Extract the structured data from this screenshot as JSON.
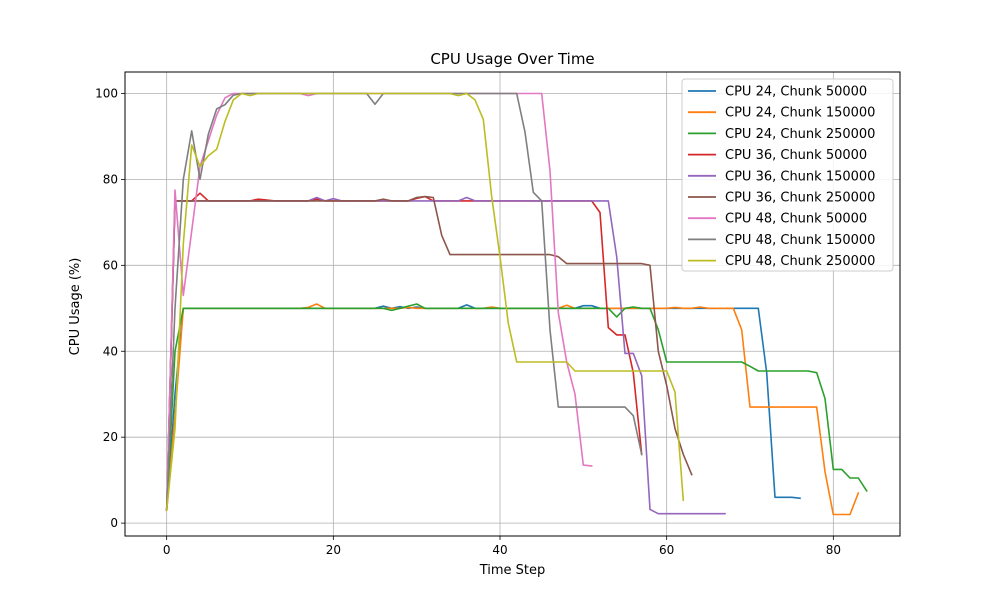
{
  "chart_data": {
    "type": "line",
    "title": "CPU Usage Over Time",
    "xlabel": "Time Step",
    "ylabel": "CPU Usage (%)",
    "xlim": [
      -5,
      88
    ],
    "ylim": [
      -3,
      105
    ],
    "xticks": [
      0,
      20,
      40,
      60,
      80
    ],
    "yticks": [
      0,
      20,
      40,
      60,
      80,
      100
    ],
    "grid": true,
    "legend_position": "upper right",
    "series": [
      {
        "name": "CPU 24, Chunk 50000",
        "color": "#1f77b4",
        "x": [
          0,
          1,
          2,
          3,
          4,
          5,
          6,
          7,
          8,
          9,
          10,
          11,
          12,
          13,
          14,
          15,
          16,
          17,
          18,
          19,
          20,
          21,
          22,
          23,
          24,
          25,
          26,
          27,
          28,
          29,
          30,
          31,
          32,
          33,
          34,
          35,
          36,
          37,
          38,
          39,
          40,
          41,
          42,
          43,
          44,
          45,
          46,
          47,
          48,
          49,
          50,
          51,
          52,
          53,
          54,
          55,
          56,
          57,
          58,
          59,
          60,
          61,
          62,
          63,
          64,
          65,
          66,
          67,
          68,
          69,
          70,
          71,
          72,
          73,
          74,
          75,
          76
        ],
        "y": [
          3,
          30,
          50,
          50,
          50,
          50,
          50,
          50,
          50,
          50,
          50,
          50,
          50,
          50,
          50,
          50,
          50,
          50,
          50,
          50,
          50,
          50,
          50,
          50,
          50,
          50,
          50.5,
          50,
          50.4,
          50,
          50.3,
          50,
          50,
          50,
          50,
          50,
          50.8,
          50,
          50,
          50,
          50,
          50,
          50,
          50,
          50,
          50,
          50,
          50,
          50,
          50,
          50.6,
          50.6,
          50,
          50,
          50,
          50,
          50,
          50,
          50,
          50,
          50,
          50,
          50,
          50,
          50,
          50,
          50,
          50,
          50,
          50,
          50,
          50,
          35,
          6,
          6,
          6,
          5.8
        ]
      },
      {
        "name": "CPU 24, Chunk 150000",
        "color": "#ff7f0e",
        "x": [
          0,
          1,
          2,
          3,
          4,
          5,
          6,
          7,
          8,
          9,
          10,
          11,
          12,
          13,
          14,
          15,
          16,
          17,
          18,
          19,
          20,
          21,
          22,
          23,
          24,
          25,
          26,
          27,
          28,
          29,
          30,
          31,
          32,
          33,
          34,
          35,
          36,
          37,
          38,
          39,
          40,
          41,
          42,
          43,
          44,
          45,
          46,
          47,
          48,
          49,
          50,
          51,
          52,
          53,
          54,
          55,
          56,
          57,
          58,
          59,
          60,
          61,
          62,
          63,
          64,
          65,
          66,
          67,
          68,
          69,
          70,
          71,
          72,
          73,
          74,
          75,
          76,
          77,
          78,
          79,
          80,
          81,
          82,
          83
        ],
        "y": [
          3,
          25,
          50,
          50,
          50,
          50,
          50,
          50,
          50,
          50,
          50,
          50,
          50,
          50,
          50,
          50,
          50,
          50.2,
          51,
          50,
          50,
          50,
          50,
          50,
          50,
          50,
          50,
          50,
          50,
          50.2,
          50,
          50,
          50,
          50,
          50,
          50,
          50,
          50,
          50,
          50.3,
          50,
          50,
          50,
          50,
          50,
          50,
          50,
          50,
          50.7,
          50,
          50,
          50,
          50,
          50,
          50,
          50,
          50,
          50,
          50,
          50,
          50,
          50.2,
          50,
          50,
          50.3,
          50,
          50,
          50,
          50,
          45,
          27,
          27,
          27,
          27,
          27,
          27,
          27,
          27,
          27,
          12,
          2,
          2,
          2,
          7
        ]
      },
      {
        "name": "CPU 24, Chunk 250000",
        "color": "#2ca02c",
        "x": [
          0,
          1,
          2,
          3,
          4,
          5,
          6,
          7,
          8,
          9,
          10,
          11,
          12,
          13,
          14,
          15,
          16,
          17,
          18,
          19,
          20,
          21,
          22,
          23,
          24,
          25,
          26,
          27,
          28,
          29,
          30,
          31,
          32,
          33,
          34,
          35,
          36,
          37,
          38,
          39,
          40,
          41,
          42,
          43,
          44,
          45,
          46,
          47,
          48,
          49,
          50,
          51,
          52,
          53,
          54,
          55,
          56,
          57,
          58,
          59,
          60,
          61,
          62,
          63,
          64,
          65,
          66,
          67,
          68,
          69,
          70,
          71,
          72,
          73,
          74,
          75,
          76,
          77,
          78,
          79,
          80,
          81,
          82,
          83,
          84
        ],
        "y": [
          3,
          40,
          50,
          50,
          50,
          50,
          50,
          50,
          50,
          50,
          50,
          50,
          50,
          50,
          50,
          50,
          50,
          50,
          50,
          50,
          50,
          50,
          50,
          50,
          50,
          50,
          50,
          49.5,
          50,
          50.5,
          51,
          50,
          50,
          50,
          50,
          50,
          50,
          50,
          50,
          50,
          50,
          50,
          50,
          50,
          50,
          50,
          50,
          50,
          50,
          50,
          50,
          50,
          50,
          50,
          48,
          50,
          50.3,
          50,
          50,
          45,
          37.5,
          37.5,
          37.5,
          37.5,
          37.5,
          37.5,
          37.5,
          37.5,
          37.5,
          37.5,
          36.5,
          35.4,
          35.4,
          35.4,
          35.4,
          35.4,
          35.4,
          35.4,
          35,
          29,
          12.5,
          12.5,
          10.5,
          10.5,
          7.5
        ]
      },
      {
        "name": "CPU 36, Chunk 50000",
        "color": "#d62728",
        "x": [
          0,
          1,
          2,
          3,
          4,
          5,
          6,
          7,
          8,
          9,
          10,
          11,
          12,
          13,
          14,
          15,
          16,
          17,
          18,
          19,
          20,
          21,
          22,
          23,
          24,
          25,
          26,
          27,
          28,
          29,
          30,
          31,
          32,
          33,
          34,
          35,
          36,
          37,
          38,
          39,
          40,
          41,
          42,
          43,
          44,
          45,
          46,
          47,
          48,
          49,
          50,
          51,
          52,
          53,
          54,
          55,
          56,
          57
        ],
        "y": [
          3,
          75,
          75,
          75,
          76.8,
          75,
          75,
          75,
          75,
          75,
          75,
          75.4,
          75.2,
          75,
          75,
          75,
          75,
          75,
          75.4,
          75,
          75,
          75,
          75,
          75,
          75,
          75,
          75,
          75,
          75,
          75,
          75.6,
          76,
          75,
          75,
          75,
          75,
          75,
          75,
          75,
          75,
          75,
          75,
          75,
          75,
          75,
          75,
          75,
          75,
          75,
          75,
          75,
          75,
          72.3,
          45.5,
          43.8,
          43.8,
          35,
          16
        ]
      },
      {
        "name": "CPU 36, Chunk 150000",
        "color": "#9467bd",
        "x": [
          0,
          1,
          2,
          3,
          4,
          5,
          6,
          7,
          8,
          9,
          10,
          11,
          12,
          13,
          14,
          15,
          16,
          17,
          18,
          19,
          20,
          21,
          22,
          23,
          24,
          25,
          26,
          27,
          28,
          29,
          30,
          31,
          32,
          33,
          34,
          35,
          36,
          37,
          38,
          39,
          40,
          41,
          42,
          43,
          44,
          45,
          46,
          47,
          48,
          49,
          50,
          51,
          52,
          53,
          54,
          55,
          56,
          57,
          58,
          59,
          60,
          61,
          62,
          63,
          64,
          65,
          66,
          67
        ],
        "y": [
          3,
          75,
          75,
          75,
          75,
          75,
          75,
          75,
          75,
          75,
          75,
          75,
          75,
          75,
          75,
          75,
          75,
          75,
          75.8,
          75,
          75.5,
          75,
          75,
          75,
          75,
          75,
          75,
          75,
          75,
          75,
          75,
          75,
          75,
          75,
          75,
          75,
          75.8,
          75,
          75,
          75,
          75,
          75,
          75,
          75,
          75,
          75,
          75,
          75,
          75,
          75,
          75,
          75,
          75,
          75,
          62,
          39.5,
          39.5,
          34.3,
          3.2,
          2.2,
          2.2,
          2.2,
          2.2,
          2.2,
          2.2,
          2.2,
          2.2,
          2.2
        ]
      },
      {
        "name": "CPU 36, Chunk 250000",
        "color": "#8c564b",
        "x": [
          0,
          1,
          2,
          3,
          4,
          5,
          6,
          7,
          8,
          9,
          10,
          11,
          12,
          13,
          14,
          15,
          16,
          17,
          18,
          19,
          20,
          21,
          22,
          23,
          24,
          25,
          26,
          27,
          28,
          29,
          30,
          31,
          32,
          33,
          34,
          35,
          36,
          37,
          38,
          39,
          40,
          41,
          42,
          43,
          44,
          45,
          46,
          47,
          48,
          49,
          50,
          51,
          52,
          53,
          54,
          55,
          56,
          57,
          58,
          59,
          60,
          61,
          62,
          63
        ],
        "y": [
          3,
          75,
          75,
          75,
          75,
          75,
          75,
          75,
          75,
          75,
          75,
          75,
          75,
          75,
          75,
          75,
          75,
          75,
          75,
          75,
          75,
          75,
          75,
          75,
          75,
          75,
          75.4,
          75,
          75,
          75,
          75.8,
          76,
          75.8,
          67,
          62.5,
          62.5,
          62.5,
          62.5,
          62.5,
          62.5,
          62.5,
          62.5,
          62.5,
          62.5,
          62.5,
          62.5,
          62.5,
          62,
          60.4,
          60.4,
          60.4,
          60.4,
          60.4,
          60.4,
          60.4,
          60.4,
          60.4,
          60.4,
          60,
          40,
          32,
          22,
          16,
          11.3
        ]
      },
      {
        "name": "CPU 48, Chunk 50000",
        "color": "#e377c2",
        "x": [
          0,
          1,
          2,
          3,
          4,
          5,
          6,
          7,
          8,
          9,
          10,
          11,
          12,
          13,
          14,
          15,
          16,
          17,
          18,
          19,
          20,
          21,
          22,
          23,
          24,
          25,
          26,
          27,
          28,
          29,
          30,
          31,
          32,
          33,
          34,
          35,
          36,
          37,
          38,
          39,
          40,
          41,
          42,
          43,
          44,
          45,
          46,
          47,
          48,
          49,
          50,
          51
        ],
        "y": [
          3,
          77.5,
          53,
          68,
          83,
          89,
          95,
          99,
          100,
          100,
          100,
          100,
          100,
          100,
          100,
          100,
          100,
          99.5,
          100,
          100,
          100,
          100,
          100,
          100,
          100,
          100,
          100,
          100,
          100,
          100,
          100,
          100,
          100,
          100,
          100,
          100,
          100,
          100,
          100,
          100,
          100,
          100,
          100,
          100,
          100,
          100,
          82,
          49,
          37.5,
          30,
          13.5,
          13.3
        ]
      },
      {
        "name": "CPU 48, Chunk 150000",
        "color": "#7f7f7f",
        "x": [
          0,
          1,
          2,
          3,
          4,
          5,
          6,
          7,
          8,
          9,
          10,
          11,
          12,
          13,
          14,
          15,
          16,
          17,
          18,
          19,
          20,
          21,
          22,
          23,
          24,
          25,
          26,
          27,
          28,
          29,
          30,
          31,
          32,
          33,
          34,
          35,
          36,
          37,
          38,
          39,
          40,
          41,
          42,
          43,
          44,
          45,
          46,
          47,
          48,
          49,
          50,
          51,
          52,
          53,
          54,
          55,
          56,
          57
        ],
        "y": [
          3,
          50,
          80,
          91.3,
          80,
          90.5,
          96.4,
          97.4,
          99.6,
          100,
          100,
          100,
          100,
          100,
          100,
          100,
          100,
          100,
          100,
          100,
          100,
          100,
          100,
          100,
          100,
          97.5,
          100,
          100,
          100,
          100,
          100,
          100,
          100,
          100,
          100,
          100,
          100,
          100,
          100,
          100,
          100,
          100,
          100,
          91,
          77,
          75,
          45,
          27,
          27,
          27,
          27,
          27,
          27,
          27,
          27,
          27,
          25,
          16
        ]
      },
      {
        "name": "CPU 48, Chunk 250000",
        "color": "#bcbd22",
        "x": [
          0,
          1,
          2,
          3,
          4,
          5,
          6,
          7,
          8,
          9,
          10,
          11,
          12,
          13,
          14,
          15,
          16,
          17,
          18,
          19,
          20,
          21,
          22,
          23,
          24,
          25,
          26,
          27,
          28,
          29,
          30,
          31,
          32,
          33,
          34,
          35,
          36,
          37,
          38,
          39,
          40,
          41,
          42,
          43,
          44,
          45,
          46,
          47,
          48,
          49,
          50,
          51,
          52,
          53,
          54,
          55,
          56,
          57,
          58,
          59,
          60,
          61,
          62
        ],
        "y": [
          3,
          22,
          65,
          88,
          83,
          85.5,
          87,
          93.5,
          98.5,
          100,
          99.5,
          100,
          100,
          100,
          100,
          100,
          100,
          100,
          100,
          100,
          100,
          100,
          100,
          100,
          100,
          100,
          100,
          100,
          100,
          100,
          100,
          100,
          100,
          100,
          100,
          99.5,
          100,
          98.5,
          94,
          76,
          62,
          46.5,
          37.5,
          37.5,
          37.5,
          37.5,
          37.5,
          37.5,
          37.5,
          35.4,
          35.4,
          35.4,
          35.4,
          35.4,
          35.4,
          35.4,
          35.4,
          35.4,
          35.4,
          35.4,
          35.4,
          30.5,
          5.3
        ]
      }
    ]
  }
}
